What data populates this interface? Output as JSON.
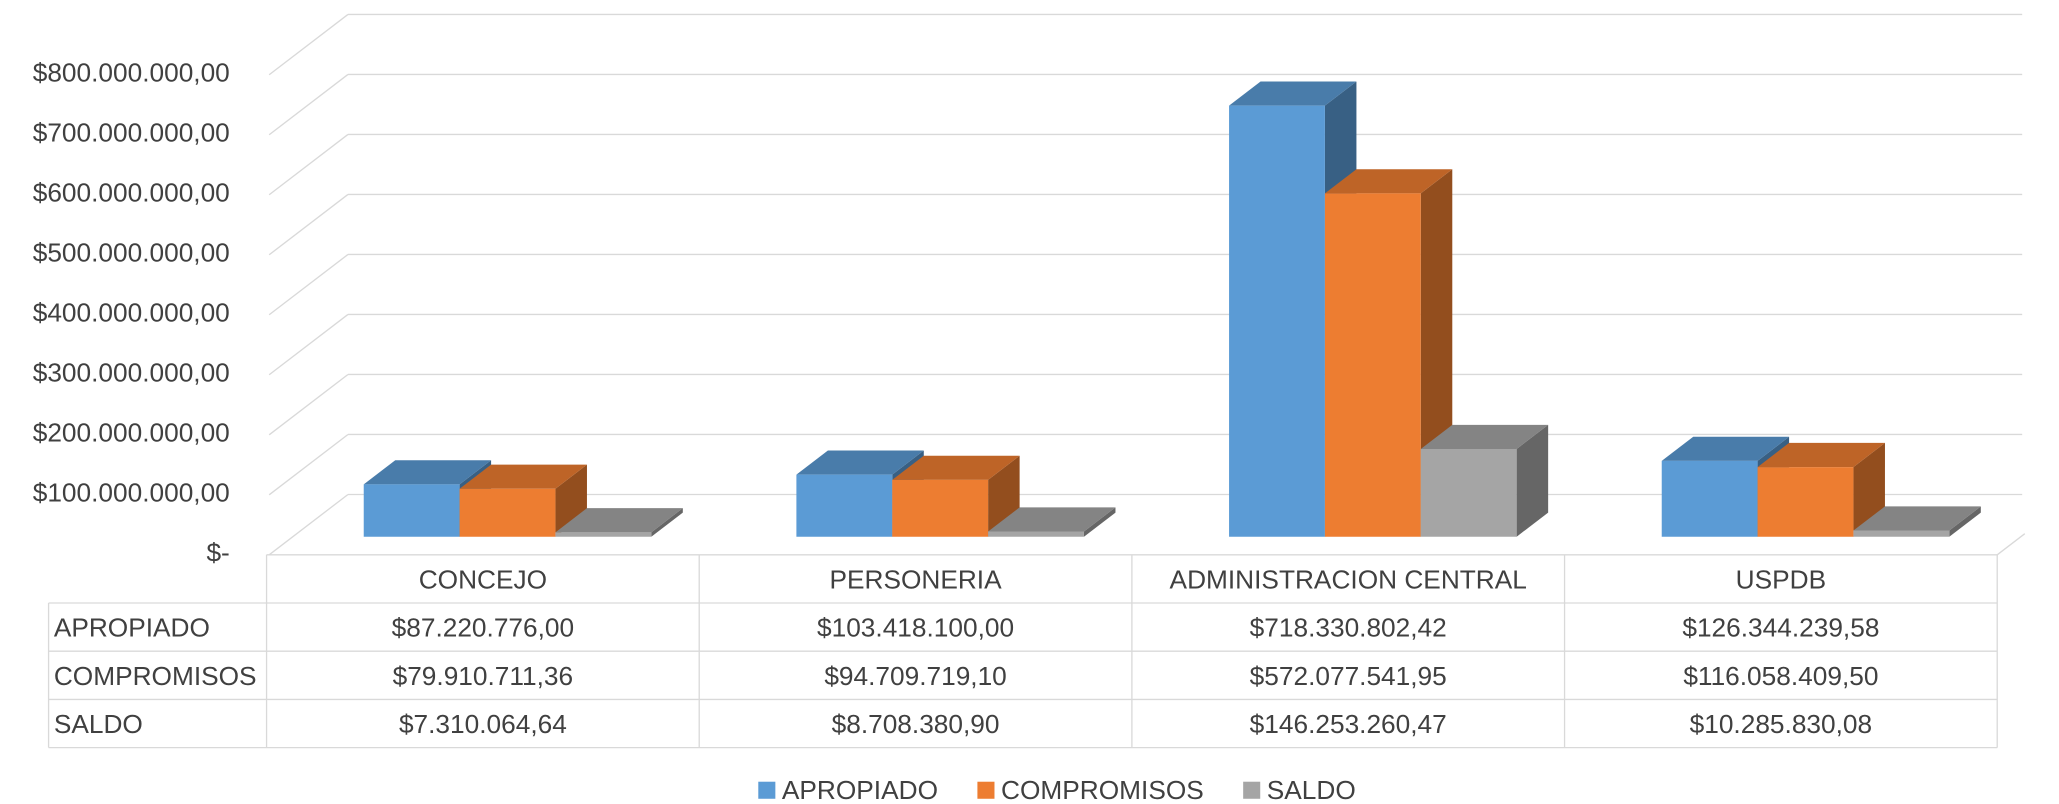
{
  "chart_data": {
    "type": "bar3d",
    "categories": [
      "CONCEJO",
      "PERSONERIA",
      "ADMINISTRACION CENTRAL",
      "USPDB"
    ],
    "series": [
      {
        "name": "APROPIADO",
        "color": "#5b9bd5",
        "values": [
          87220776.0,
          103418100.0,
          718330802.42,
          126344239.58
        ],
        "value_labels": [
          "$87.220.776,00",
          "$103.418.100,00",
          "$718.330.802,42",
          "$126.344.239,58"
        ]
      },
      {
        "name": "COMPROMISOS",
        "color": "#ed7d31",
        "values": [
          79910711.36,
          94709719.1,
          572077541.95,
          116058409.5
        ],
        "value_labels": [
          "$79.910.711,36",
          "$94.709.719,10",
          "$572.077.541,95",
          "$116.058.409,50"
        ]
      },
      {
        "name": "SALDO",
        "color": "#a5a5a5",
        "values": [
          7310064.64,
          8708380.9,
          146253260.47,
          10285830.08
        ],
        "value_labels": [
          "$7.310.064,64",
          "$8.708.380,90",
          "$146.253.260,47",
          "$10.285.830,08"
        ]
      }
    ],
    "ylim": [
      0,
      800000000
    ],
    "yticks": [
      {
        "value": 0,
        "label": "$-"
      },
      {
        "value": 100000000,
        "label": "$100.000.000,00"
      },
      {
        "value": 200000000,
        "label": "$200.000.000,00"
      },
      {
        "value": 300000000,
        "label": "$300.000.000,00"
      },
      {
        "value": 400000000,
        "label": "$400.000.000,00"
      },
      {
        "value": 500000000,
        "label": "$500.000.000,00"
      },
      {
        "value": 600000000,
        "label": "$600.000.000,00"
      },
      {
        "value": 700000000,
        "label": "$700.000.000,00"
      },
      {
        "value": 800000000,
        "label": "$800.000.000,00"
      }
    ],
    "grid": true,
    "legend": "bottom",
    "data_table": true
  }
}
